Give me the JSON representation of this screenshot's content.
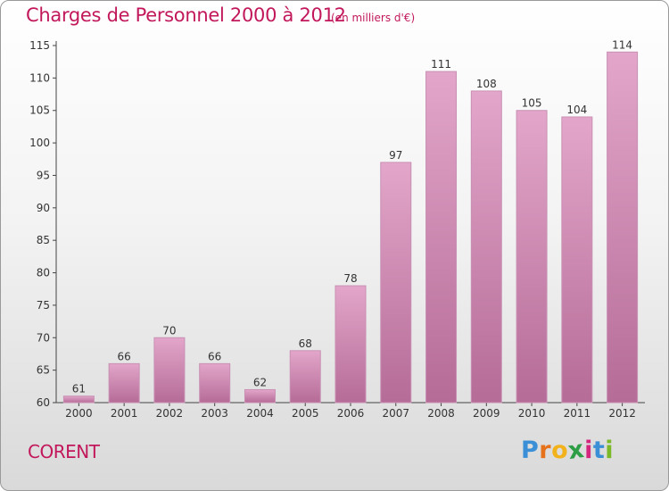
{
  "header": {
    "title": "Charges de Personnel 2000 à 2012",
    "subtitle": "(en milliers d'€)"
  },
  "footer": {
    "commune": "CORENT",
    "logo_letters": [
      "P",
      "r",
      "o",
      "x",
      "i",
      "t",
      "i"
    ]
  },
  "colors": {
    "title": "#c2185b",
    "bar_light": "#e3a6ca",
    "bar_dark": "#b56c97",
    "bar_stroke": "#c890b4",
    "logo": [
      "#3a8fd6",
      "#e6731c",
      "#f2b21b",
      "#2e9e46",
      "#d4267e",
      "#3a8fd6",
      "#7cb928"
    ]
  },
  "chart_data": {
    "type": "bar",
    "title": "Charges de Personnel 2000 à 2012",
    "subtitle": "(en milliers d'€)",
    "categories": [
      "2000",
      "2001",
      "2002",
      "2003",
      "2004",
      "2005",
      "2006",
      "2007",
      "2008",
      "2009",
      "2010",
      "2011",
      "2012"
    ],
    "values": [
      61,
      66,
      70,
      66,
      62,
      68,
      78,
      97,
      111,
      108,
      105,
      104,
      114
    ],
    "ylim": [
      60,
      115
    ],
    "yticks": [
      60,
      65,
      70,
      75,
      80,
      85,
      90,
      95,
      100,
      105,
      110,
      115
    ],
    "grid": false,
    "legend": "none"
  }
}
